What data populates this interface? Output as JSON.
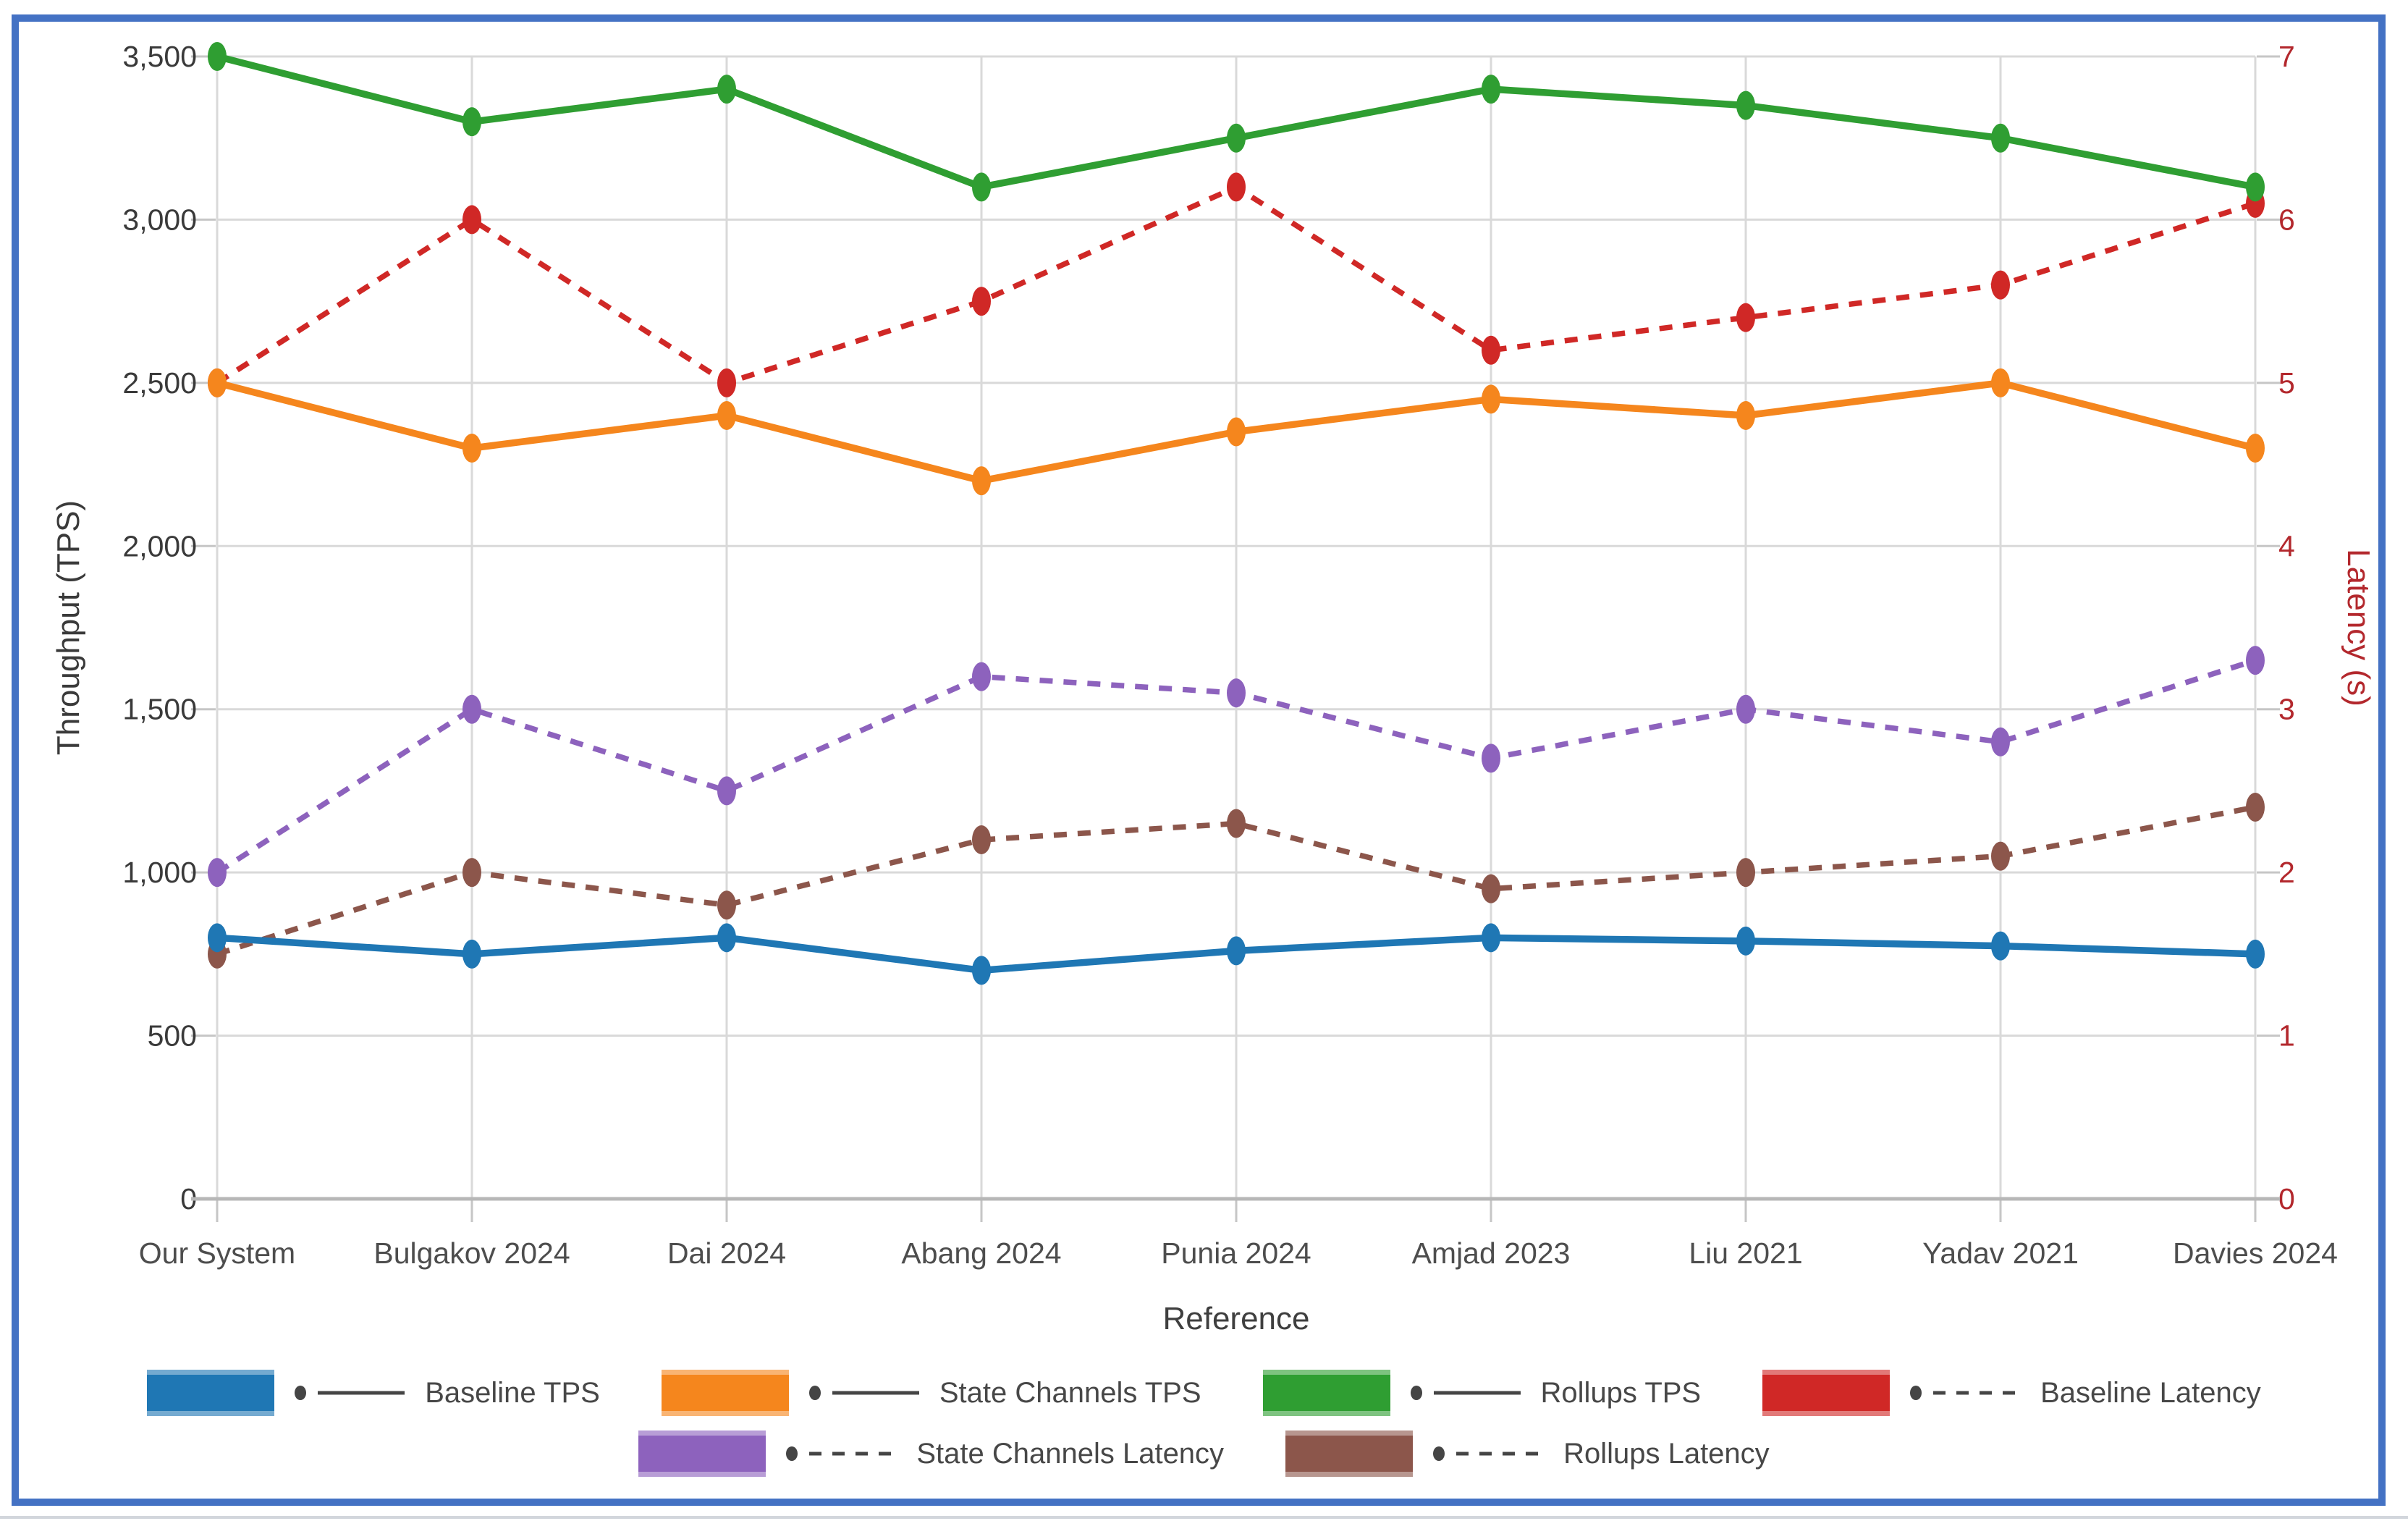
{
  "chart_data": {
    "type": "line",
    "title": "",
    "frame_border_color": "#4472c4",
    "grid": true,
    "legend_position": "bottom",
    "x_axis": {
      "label": "Reference",
      "categories": [
        "Our System",
        "Bulgakov 2024",
        "Dai 2024",
        "Abang 2024",
        "Punia 2024",
        "Amjad 2023",
        "Liu 2021",
        "Yadav 2021",
        "Davies 2024"
      ]
    },
    "y_axis_left": {
      "label": "Throughput (TPS)",
      "min": 0,
      "max": 3500,
      "tick_step": 500,
      "tick_labels": [
        "0",
        "500",
        "1,000",
        "1,500",
        "2,000",
        "2,500",
        "3,000",
        "3,500"
      ],
      "color": "#3a3a3a"
    },
    "y_axis_right": {
      "label": "Latency (s)",
      "min": 0,
      "max": 7,
      "tick_step": 1,
      "tick_labels": [
        "0",
        "1",
        "2",
        "3",
        "4",
        "5",
        "6",
        "7"
      ],
      "color": "#b3282d"
    },
    "series": [
      {
        "name": "Baseline TPS",
        "axis": "left",
        "line_style": "solid",
        "color": "#1f77b4",
        "values": [
          800,
          750,
          800,
          700,
          760,
          800,
          790,
          775,
          750
        ]
      },
      {
        "name": "State Channels TPS",
        "axis": "left",
        "line_style": "solid",
        "color": "#f5861d",
        "values": [
          2500,
          2300,
          2400,
          2200,
          2350,
          2450,
          2400,
          2500,
          2300
        ]
      },
      {
        "name": "Rollups TPS",
        "axis": "left",
        "line_style": "solid",
        "color": "#2f9e32",
        "values": [
          3500,
          3300,
          3400,
          3100,
          3250,
          3400,
          3350,
          3250,
          3100
        ]
      },
      {
        "name": "Baseline Latency",
        "axis": "right",
        "line_style": "dashed",
        "color": "#d02826",
        "values": [
          5.0,
          6.0,
          5.0,
          5.5,
          6.2,
          5.2,
          5.4,
          5.6,
          6.1
        ]
      },
      {
        "name": "State Channels Latency",
        "axis": "right",
        "line_style": "dashed",
        "color": "#8d62bd",
        "values": [
          2.0,
          3.0,
          2.5,
          3.2,
          3.1,
          2.7,
          3.0,
          2.8,
          3.3
        ]
      },
      {
        "name": "Rollups Latency",
        "axis": "right",
        "line_style": "dashed",
        "color": "#8c564b",
        "values": [
          1.5,
          2.0,
          1.8,
          2.2,
          2.3,
          1.9,
          2.0,
          2.1,
          2.4
        ]
      }
    ],
    "legend_rows": [
      [
        "Baseline TPS",
        "State Channels TPS",
        "Rollups TPS",
        "Baseline Latency"
      ],
      [
        "State Channels Latency",
        "Rollups Latency"
      ]
    ]
  }
}
